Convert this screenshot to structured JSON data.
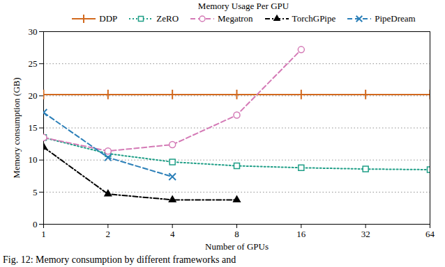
{
  "chart_data": {
    "type": "line",
    "title": "Memory Usage Per GPU",
    "x_label": "Number of GPUs",
    "y_label": "Memory consumption (GB)",
    "caption": "Fig. 12: Memory consumption by different frameworks and",
    "x": [
      1,
      2,
      4,
      8,
      16,
      32,
      64
    ],
    "xlim": [
      1,
      64
    ],
    "xticks": [
      1,
      2,
      4,
      8,
      16,
      32,
      64
    ],
    "log": "x",
    "ylim": [
      0,
      30
    ],
    "yticks": [
      0,
      5,
      10,
      15,
      20,
      25,
      30
    ],
    "grid": true,
    "series": [
      {
        "name": "DDP",
        "color": "#d2691e",
        "marker": "plus",
        "line_style": "solid",
        "values": [
          20.2,
          20.2,
          20.2,
          20.2,
          20.2,
          20.2,
          20.2
        ]
      },
      {
        "name": "ZeRO",
        "color": "#1e9e86",
        "marker": "square_open",
        "line_style": "dotted",
        "values": [
          13.5,
          11,
          9.7,
          9.1,
          8.8,
          8.6,
          8.5
        ]
      },
      {
        "name": "Megatron",
        "color": "#d47ab6",
        "marker": "circle_open",
        "line_style": "dashed",
        "values": [
          13.5,
          11.4,
          12.4,
          17,
          27.2,
          null,
          null
        ]
      },
      {
        "name": "TorchGPipe",
        "color": "#000000",
        "marker": "triangle",
        "line_style": "dashdot",
        "values": [
          12,
          4.7,
          3.8,
          3.8,
          null,
          null,
          null
        ]
      },
      {
        "name": "PipeDream",
        "color": "#2b7fb8",
        "marker": "times",
        "line_style": "dashed",
        "values": [
          17.4,
          10.4,
          7.4,
          null,
          null,
          null,
          null
        ]
      }
    ]
  }
}
